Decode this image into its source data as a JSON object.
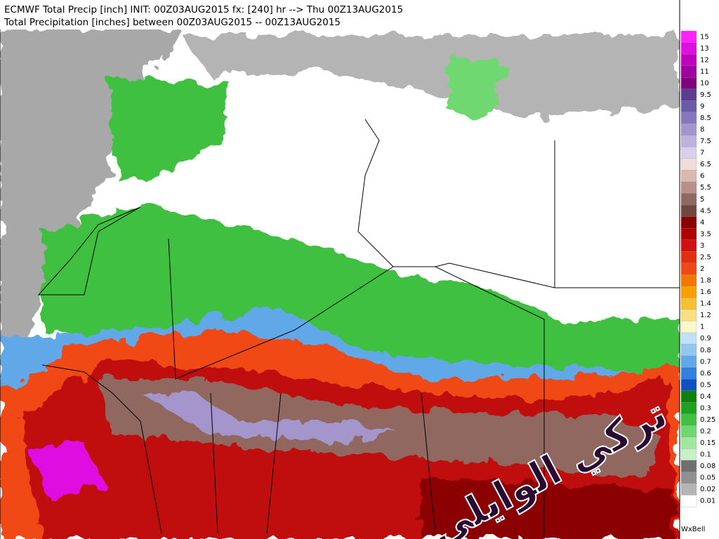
{
  "header": {
    "line1": "ECMWF Total Precip [inch] INIT: 00Z03AUG2015 fx: [240] hr --> Thu 00Z13AUG2015",
    "line2": "Total Precipitation [inches] between 00Z03AUG2015 -- 00Z13AUG2015"
  },
  "colorbar": {
    "levels": [
      {
        "label": "15",
        "color": "#ff20ff"
      },
      {
        "label": "13",
        "color": "#e010e0"
      },
      {
        "label": "12",
        "color": "#c000c0"
      },
      {
        "label": "11",
        "color": "#a000a0"
      },
      {
        "label": "10",
        "color": "#800080"
      },
      {
        "label": "9.5",
        "color": "#5a3c90"
      },
      {
        "label": "9",
        "color": "#6c5aa8"
      },
      {
        "label": "8.5",
        "color": "#8676bc"
      },
      {
        "label": "8",
        "color": "#a496cc"
      },
      {
        "label": "7.5",
        "color": "#bcb2dc"
      },
      {
        "label": "7",
        "color": "#d8d0ec"
      },
      {
        "label": "6.5",
        "color": "#f0dcd8"
      },
      {
        "label": "6",
        "color": "#d8b8b0"
      },
      {
        "label": "5.5",
        "color": "#b89088"
      },
      {
        "label": "5",
        "color": "#906860"
      },
      {
        "label": "4.5",
        "color": "#6e4840"
      },
      {
        "label": "4",
        "color": "#8b0000"
      },
      {
        "label": "3.5",
        "color": "#b00000"
      },
      {
        "label": "3",
        "color": "#d01010"
      },
      {
        "label": "2.5",
        "color": "#e03010"
      },
      {
        "label": "2",
        "color": "#f04818"
      },
      {
        "label": "1.8",
        "color": "#f07800"
      },
      {
        "label": "1.6",
        "color": "#f8a000"
      },
      {
        "label": "1.4",
        "color": "#f8c030"
      },
      {
        "label": "1.2",
        "color": "#f8e080"
      },
      {
        "label": "1",
        "color": "#f8f8c8"
      },
      {
        "label": "0.9",
        "color": "#c0e0f8"
      },
      {
        "label": "0.8",
        "color": "#90c8f0"
      },
      {
        "label": "0.7",
        "color": "#60a8e8"
      },
      {
        "label": "0.6",
        "color": "#3080e0"
      },
      {
        "label": "0.5",
        "color": "#1050c0"
      },
      {
        "label": "0.4",
        "color": "#108010"
      },
      {
        "label": "0.3",
        "color": "#20a020"
      },
      {
        "label": "0.25",
        "color": "#40c040"
      },
      {
        "label": "0.2",
        "color": "#70d870"
      },
      {
        "label": "0.15",
        "color": "#a0e8a0"
      },
      {
        "label": "0.1",
        "color": "#c8f0c8"
      },
      {
        "label": "0.08",
        "color": "#707070"
      },
      {
        "label": "0.05",
        "color": "#909090"
      },
      {
        "label": "0.02",
        "color": "#b4b4b4"
      },
      {
        "label": "0.01",
        "color": "#ffffff"
      }
    ]
  },
  "watermark": "تركي الوايلي",
  "logo": "WxBell"
}
